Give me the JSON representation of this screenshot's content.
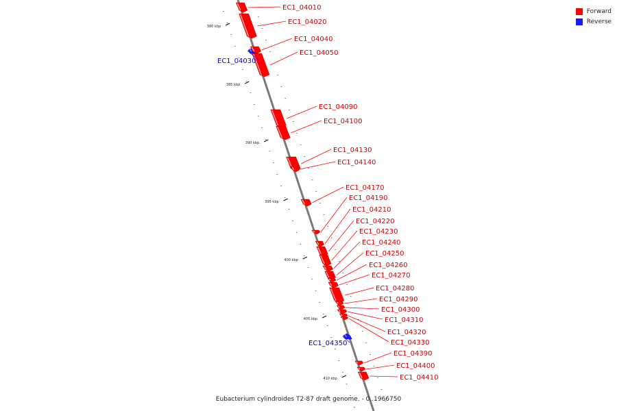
{
  "legend": {
    "forward": {
      "label": "Forward",
      "color": "#ff0000"
    },
    "reverse": {
      "label": "Reverse",
      "color": "#1a1aff"
    }
  },
  "title": "Eubacterium cylindroides T2-87 draft genome. - 0..1966750",
  "ticks": [
    "380 kbp",
    "385 kbp",
    "390 kbp",
    "395 kbp",
    "400 kbp",
    "405 kbp",
    "410 kbp"
  ],
  "genes": [
    {
      "id": "EC1_04010",
      "strand": "forward"
    },
    {
      "id": "EC1_04020",
      "strand": "forward"
    },
    {
      "id": "EC1_04030",
      "strand": "reverse"
    },
    {
      "id": "EC1_04040",
      "strand": "forward"
    },
    {
      "id": "EC1_04050",
      "strand": "forward"
    },
    {
      "id": "EC1_04090",
      "strand": "forward"
    },
    {
      "id": "EC1_04100",
      "strand": "forward"
    },
    {
      "id": "EC1_04130",
      "strand": "forward"
    },
    {
      "id": "EC1_04140",
      "strand": "forward"
    },
    {
      "id": "EC1_04170",
      "strand": "forward"
    },
    {
      "id": "EC1_04190",
      "strand": "forward"
    },
    {
      "id": "EC1_04210",
      "strand": "forward"
    },
    {
      "id": "EC1_04220",
      "strand": "forward"
    },
    {
      "id": "EC1_04230",
      "strand": "forward"
    },
    {
      "id": "EC1_04240",
      "strand": "forward"
    },
    {
      "id": "EC1_04250",
      "strand": "forward"
    },
    {
      "id": "EC1_04260",
      "strand": "forward"
    },
    {
      "id": "EC1_04270",
      "strand": "forward"
    },
    {
      "id": "EC1_04280",
      "strand": "forward"
    },
    {
      "id": "EC1_04290",
      "strand": "forward"
    },
    {
      "id": "EC1_04300",
      "strand": "forward"
    },
    {
      "id": "EC1_04310",
      "strand": "forward"
    },
    {
      "id": "EC1_04320",
      "strand": "forward"
    },
    {
      "id": "EC1_04330",
      "strand": "forward"
    },
    {
      "id": "EC1_04350",
      "strand": "reverse"
    },
    {
      "id": "EC1_04390",
      "strand": "forward"
    },
    {
      "id": "EC1_04400",
      "strand": "forward"
    },
    {
      "id": "EC1_04410",
      "strand": "forward"
    }
  ]
}
